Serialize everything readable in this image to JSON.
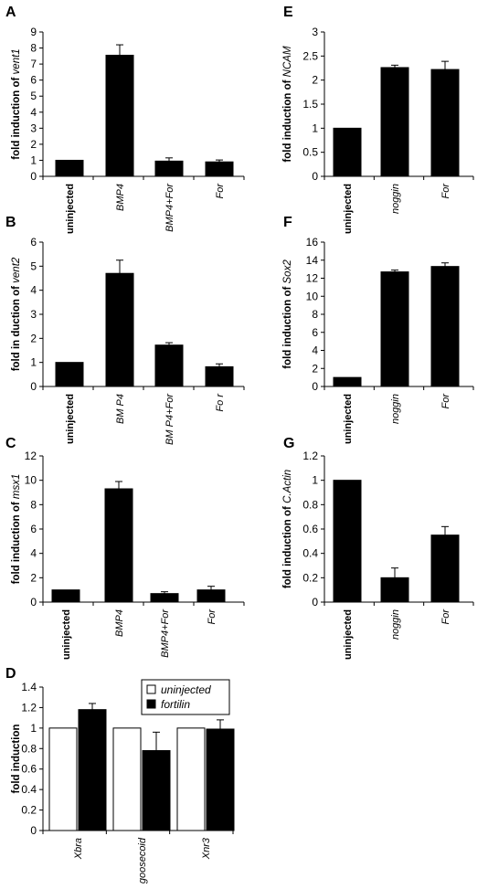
{
  "chart_data": [
    {
      "panel": "A",
      "type": "bar",
      "ylabel": "fold induction of ",
      "ylabel_gene": "vent1",
      "ylim": [
        0,
        9
      ],
      "yticks": [
        "0",
        "1",
        "2",
        "3",
        "4",
        "5",
        "6",
        "7",
        "8",
        "9"
      ],
      "categories": [
        "uninjected",
        "BMP4",
        "BMP4+For",
        "For"
      ],
      "category_bold": [
        true,
        false,
        false,
        false
      ],
      "category_italic": [
        false,
        true,
        true,
        true
      ],
      "values": [
        1.0,
        7.55,
        0.95,
        0.9
      ],
      "errors": [
        0,
        0.65,
        0.2,
        0.12
      ]
    },
    {
      "panel": "B",
      "type": "bar",
      "ylabel": "fold in duction of ",
      "ylabel_gene": "vent2",
      "ylim": [
        0,
        6
      ],
      "yticks": [
        "0",
        "1",
        "2",
        "3",
        "4",
        "5",
        "6"
      ],
      "categories": [
        "uninjected",
        "BM P4",
        "BM P4+For",
        "Fo r"
      ],
      "category_bold": [
        true,
        false,
        false,
        false
      ],
      "category_italic": [
        false,
        true,
        true,
        true
      ],
      "values": [
        1.0,
        4.7,
        1.72,
        0.82
      ],
      "errors": [
        0,
        0.55,
        0.1,
        0.12
      ]
    },
    {
      "panel": "C",
      "type": "bar",
      "ylabel": "fold induction of ",
      "ylabel_gene": "msx1",
      "ylim": [
        0,
        12
      ],
      "yticks": [
        "0",
        "2",
        "4",
        "6",
        "8",
        "10",
        "12"
      ],
      "categories": [
        "uninjected",
        "BMP4",
        "BMP4+For",
        "For"
      ],
      "category_bold": [
        true,
        false,
        false,
        false
      ],
      "category_italic": [
        false,
        true,
        true,
        true
      ],
      "values": [
        1.0,
        9.3,
        0.7,
        1.0
      ],
      "errors": [
        0,
        0.6,
        0.15,
        0.3
      ]
    },
    {
      "panel": "D",
      "type": "bar",
      "ylabel": "fold induction",
      "ylabel_gene": "",
      "ylim": [
        0,
        1.4
      ],
      "yticks": [
        "0",
        "0.2",
        "0.4",
        "0.6",
        "0.8",
        "1",
        "1.2",
        "1.4"
      ],
      "categories": [
        "Xbra",
        "goosecoid",
        "Xnr3"
      ],
      "category_bold": [
        false,
        false,
        false
      ],
      "category_italic": [
        true,
        true,
        true
      ],
      "series": [
        {
          "name": "uninjected",
          "color": "#ffffff",
          "values": [
            1.0,
            1.0,
            1.0
          ],
          "errors": [
            0,
            0,
            0
          ]
        },
        {
          "name": "fortilin",
          "color": "#000000",
          "values": [
            1.18,
            0.78,
            0.99
          ],
          "errors": [
            0.06,
            0.18,
            0.09
          ]
        }
      ],
      "legend": "top-right"
    },
    {
      "panel": "E",
      "type": "bar",
      "ylabel": "fold induction of ",
      "ylabel_gene": "NCAM",
      "ylim": [
        0,
        3
      ],
      "yticks": [
        "0",
        "0.5",
        "1",
        "1.5",
        "2",
        "2.5",
        "3"
      ],
      "categories": [
        "uninjected",
        "noggin",
        "For"
      ],
      "category_bold": [
        true,
        false,
        false
      ],
      "category_italic": [
        false,
        true,
        true
      ],
      "values": [
        1.0,
        2.26,
        2.22
      ],
      "errors": [
        0,
        0.05,
        0.17
      ]
    },
    {
      "panel": "F",
      "type": "bar",
      "ylabel": "fold induction of ",
      "ylabel_gene": "Sox2",
      "ylim": [
        0,
        16
      ],
      "yticks": [
        "0",
        "2",
        "4",
        "6",
        "8",
        "10",
        "12",
        "14",
        "16"
      ],
      "categories": [
        "uninjected",
        "noggin",
        "For"
      ],
      "category_bold": [
        true,
        false,
        false
      ],
      "category_italic": [
        false,
        true,
        true
      ],
      "values": [
        1.0,
        12.7,
        13.3
      ],
      "errors": [
        0,
        0.2,
        0.4
      ]
    },
    {
      "panel": "G",
      "type": "bar",
      "ylabel": "fold induction of ",
      "ylabel_gene": "C.Actin",
      "ylim": [
        0,
        1.2
      ],
      "yticks": [
        "0",
        "0.2",
        "0.4",
        "0.6",
        "0.8",
        "1",
        "1.2"
      ],
      "categories": [
        "uninjected",
        "noggin",
        "For"
      ],
      "category_bold": [
        true,
        false,
        false
      ],
      "category_italic": [
        false,
        true,
        true
      ],
      "values": [
        1.0,
        0.2,
        0.55
      ],
      "errors": [
        0,
        0.08,
        0.07
      ]
    }
  ]
}
